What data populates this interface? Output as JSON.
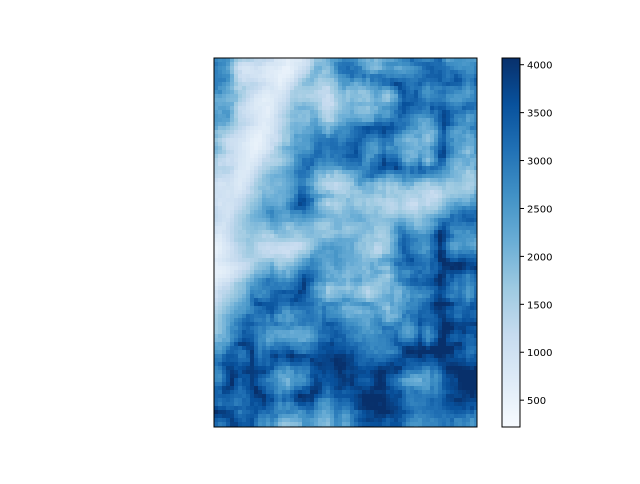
{
  "chart_data": {
    "type": "heatmap",
    "title": "",
    "xlabel": "",
    "ylabel": "",
    "colormap": "Blues",
    "colorbar": {
      "vmin": 220,
      "vmax": 4070,
      "ticks": [
        500,
        1000,
        1500,
        2000,
        2500,
        3000,
        3500,
        4000
      ],
      "tick_labels": [
        "500",
        "1000",
        "1500",
        "2000",
        "2500",
        "3000",
        "3500",
        "4000"
      ]
    },
    "x_ticks_visible": false,
    "y_ticks_visible": false,
    "description": "Shaded elevation raster (terrain) with valleys in light tones and ridges in dark blue"
  },
  "colors": {
    "cmap_stops": [
      "#f7fbff",
      "#deebf7",
      "#c6dbef",
      "#9ecae1",
      "#6baed6",
      "#4292c6",
      "#2171b5",
      "#08519c",
      "#08306b"
    ],
    "frame": "#000000"
  }
}
